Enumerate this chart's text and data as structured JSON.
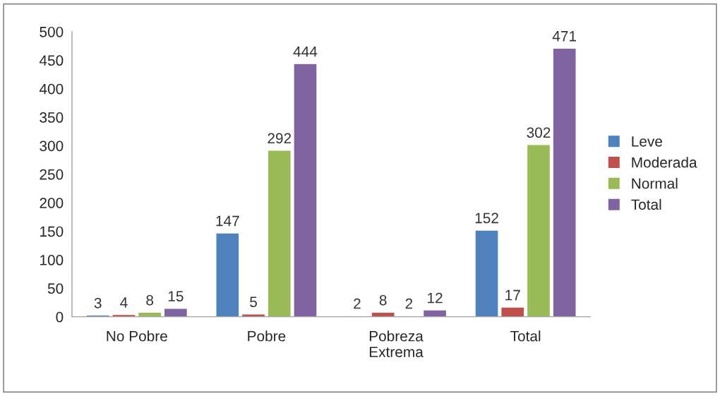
{
  "chart_data": {
    "type": "bar",
    "categories": [
      "No Pobre",
      "Pobre",
      "Pobreza Extrema",
      "Total"
    ],
    "series": [
      {
        "name": "Leve",
        "color": "#4f81bd",
        "values": [
          3,
          147,
          2,
          152
        ]
      },
      {
        "name": "Moderada",
        "color": "#c0504d",
        "values": [
          4,
          5,
          8,
          17
        ]
      },
      {
        "name": "Normal",
        "color": "#9bbb59",
        "values": [
          8,
          292,
          2,
          302
        ]
      },
      {
        "name": "Total",
        "color": "#8064a2",
        "values": [
          15,
          444,
          12,
          471
        ]
      }
    ],
    "ylim": [
      0,
      500
    ],
    "yticks": [
      0,
      50,
      100,
      150,
      200,
      250,
      300,
      350,
      400,
      450,
      500
    ],
    "data_labels": true,
    "grid": false,
    "legend": "right"
  }
}
